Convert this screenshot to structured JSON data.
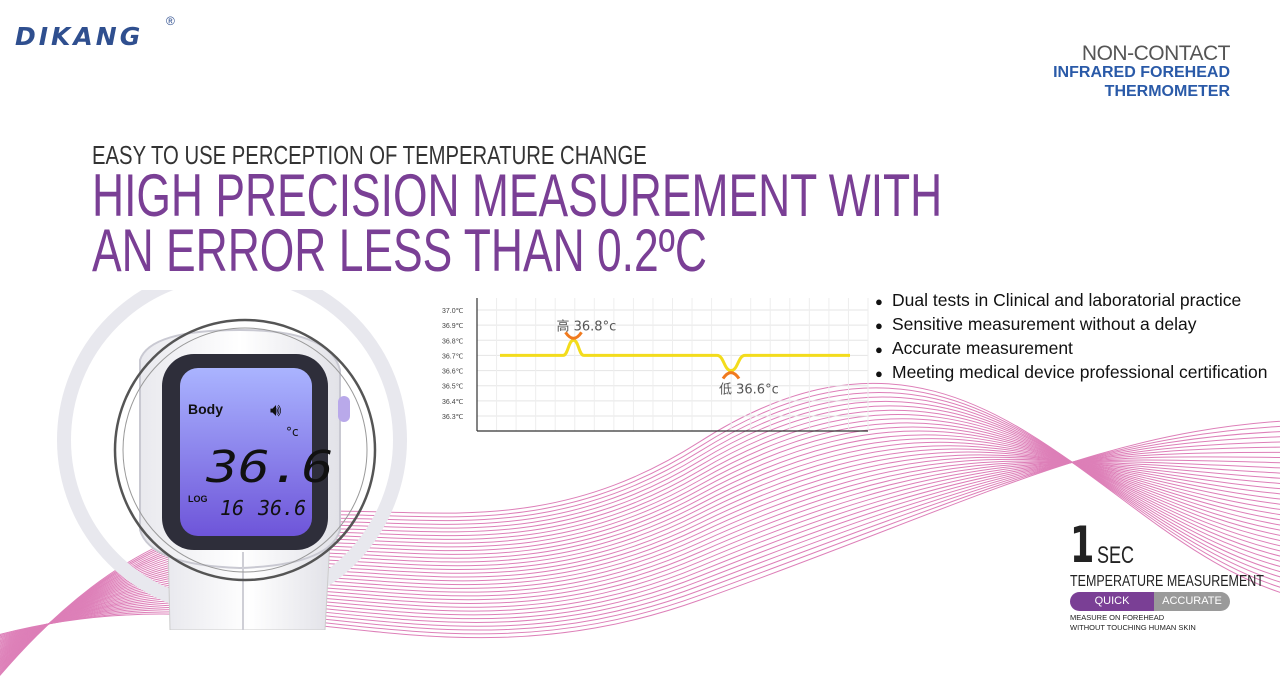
{
  "brand": {
    "name": "DIKANG",
    "registered": "®"
  },
  "product": {
    "line1": "NON-CONTACT",
    "line2": "INFRARED FOREHEAD",
    "line3": "THERMOMETER"
  },
  "subheadline": "EASY TO USE  PERCEPTION OF TEMPERATURE CHANGE",
  "headline": {
    "line1": "HIGH PRECISION MEASUREMENT WITH",
    "line2": "AN ERROR LESS THAN 0.2ºC"
  },
  "display": {
    "mode": "Body",
    "reading": "36.6",
    "unit": "°c",
    "log_label": "LOG",
    "log_index": "16",
    "log_value": "36.6"
  },
  "chart_data": {
    "type": "line",
    "y_ticks": [
      "37.0℃",
      "36.9℃",
      "36.8℃",
      "36.7℃",
      "36.6℃",
      "36.5℃",
      "36.4℃",
      "36.3℃"
    ],
    "ylim": [
      36.3,
      37.0
    ],
    "points": [
      [
        0,
        36.7
      ],
      [
        10,
        36.7
      ],
      [
        18,
        36.7
      ],
      [
        21,
        36.8
      ],
      [
        24,
        36.7
      ],
      [
        30,
        36.7
      ],
      [
        55,
        36.7
      ],
      [
        62,
        36.7
      ],
      [
        66,
        36.6
      ],
      [
        70,
        36.7
      ],
      [
        80,
        36.7
      ],
      [
        100,
        36.7
      ]
    ],
    "annotations": [
      {
        "text": "高 36.8°c",
        "x": 21,
        "y": 36.8
      },
      {
        "text": "低 36.6°c",
        "x": 66,
        "y": 36.6
      }
    ],
    "line_color": "#f3dc1c",
    "extreme_color": "#f07a1f",
    "grid": true
  },
  "features": [
    "Dual tests in Clinical and laboratorial practice",
    "Sensitive measurement without a delay",
    "Accurate measurement",
    "Meeting medical device professional certification"
  ],
  "badge": {
    "number": "1",
    "unit": "SEC",
    "title": "TEMPERATURE MEASUREMENT",
    "quick": "QUICK",
    "accurate": "ACCURATE",
    "note_line1": "MEASURE ON FOREHEAD",
    "note_line2": "WITHOUT TOUCHING HUMAN SKIN"
  },
  "colors": {
    "brand": "#2f4f8f",
    "headline": "#7a3f95",
    "product_blue": "#2a5aa8",
    "waves": "#c2187f",
    "screen": "#7f83e8",
    "quick_pill": "#7a3f95",
    "accurate_pill": "#9a9a9a"
  }
}
